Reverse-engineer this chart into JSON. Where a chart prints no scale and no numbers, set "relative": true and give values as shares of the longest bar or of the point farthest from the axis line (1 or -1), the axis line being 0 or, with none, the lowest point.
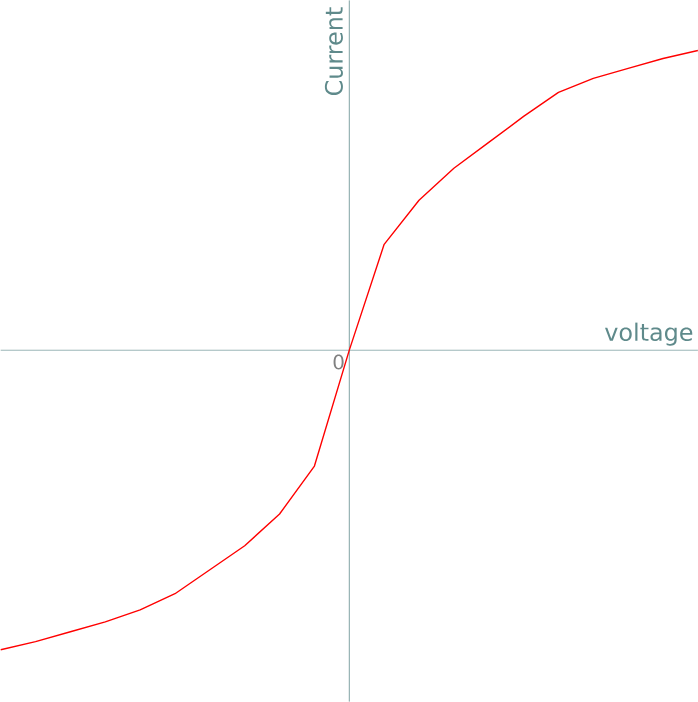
{
  "chart_data": {
    "type": "line",
    "relative": true,
    "xlabel": "voltage",
    "ylabel": "Current",
    "annotations": [
      "0"
    ],
    "ref_lines": [
      {
        "axis": "y",
        "value": 0,
        "color": "#5f8a8b"
      }
    ],
    "categories": [
      null,
      null,
      null,
      null,
      null,
      null,
      null,
      null,
      null,
      null,
      null,
      null,
      null,
      null,
      null,
      null,
      null,
      null,
      null,
      null,
      null
    ],
    "series": [
      {
        "color": "#ff0000",
        "values": [
          -1.0,
          -0.973,
          -0.94,
          -0.907,
          -0.867,
          -0.813,
          -0.733,
          -0.653,
          -0.547,
          -0.387,
          0,
          0.353,
          0.5,
          0.607,
          0.693,
          0.78,
          0.86,
          0.907,
          0.94,
          0.973,
          1.0
        ]
      }
    ]
  }
}
